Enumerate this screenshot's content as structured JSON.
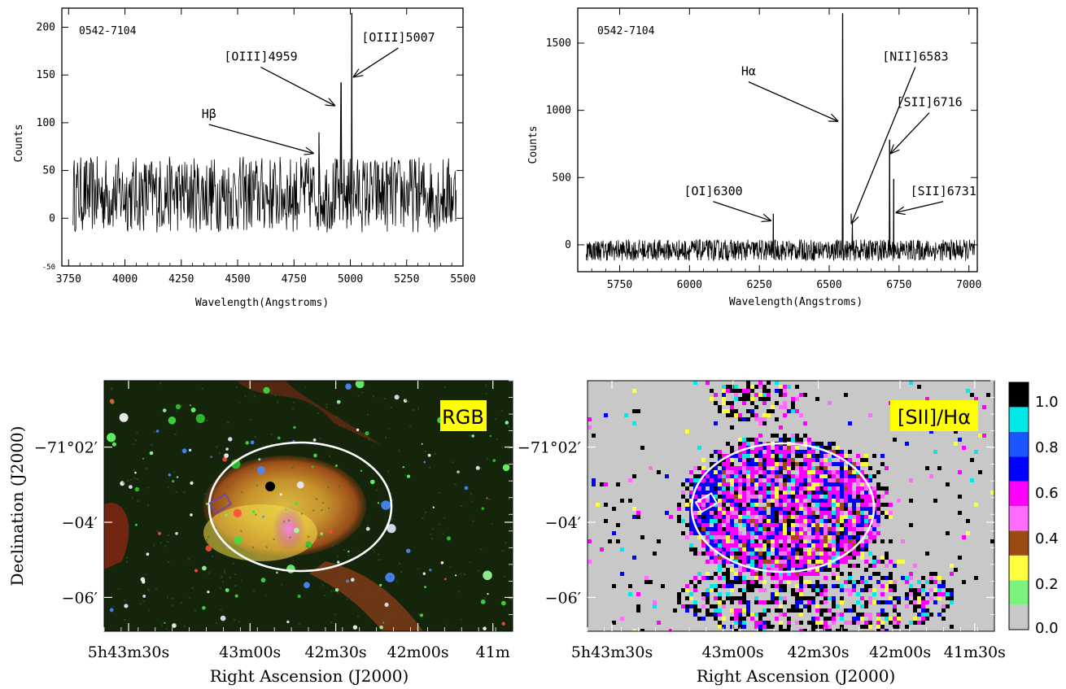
{
  "chart_data": [
    {
      "type": "line",
      "panel": "top-left",
      "object_label": "0542-7104",
      "xlabel": "Wavelength(Angstroms)",
      "ylabel": "Counts",
      "xlim": [
        3720,
        5500
      ],
      "ylim": [
        -50,
        220
      ],
      "xticks": [
        3750,
        4000,
        4250,
        4500,
        4750,
        5000,
        5250,
        5500
      ],
      "yticks": [
        -50,
        0,
        50,
        100,
        150,
        200
      ],
      "noise": {
        "mean": 25,
        "amplitude": 40,
        "x_start": 3770,
        "x_end": 5470
      },
      "lines": [
        {
          "x": 4861,
          "y": 90
        },
        {
          "x": 4959,
          "y": 142
        },
        {
          "x": 5007,
          "y": 215
        }
      ],
      "annotations": [
        {
          "text": "Hβ",
          "text_x": 4340,
          "text_y": 105,
          "arrow_to_x": 4835,
          "arrow_to_y": 68
        },
        {
          "text": "[OIII]4959",
          "text_x": 4440,
          "text_y": 165,
          "arrow_to_x": 4930,
          "arrow_to_y": 118
        },
        {
          "text": "[OIII]5007",
          "text_x": 5050,
          "text_y": 185,
          "arrow_to_x": 5015,
          "arrow_to_y": 148
        }
      ]
    },
    {
      "type": "line",
      "panel": "top-right",
      "object_label": "0542-7104",
      "xlabel": "Wavelength(Angstroms)",
      "ylabel": "Counts",
      "xlim": [
        5600,
        7030
      ],
      "ylim": [
        -200,
        1760
      ],
      "xticks": [
        5750,
        6000,
        6250,
        6500,
        6750,
        7000
      ],
      "yticks": [
        0,
        500,
        1000,
        1500
      ],
      "noise": {
        "mean": -40,
        "amplitude": 80,
        "x_start": 5630,
        "x_end": 7020
      },
      "lines": [
        {
          "x": 6300,
          "y": 230
        },
        {
          "x": 6548,
          "y": 1720
        },
        {
          "x": 6583,
          "y": 160
        },
        {
          "x": 6716,
          "y": 780
        },
        {
          "x": 6731,
          "y": 490
        }
      ],
      "annotations": [
        {
          "text": "Hα",
          "text_x": 6185,
          "text_y": 1260,
          "arrow_to_x": 6530,
          "arrow_to_y": 920
        },
        {
          "text": "[NII]6583",
          "text_x": 6690,
          "text_y": 1370,
          "arrow_to_x": 6580,
          "arrow_to_y": 160
        },
        {
          "text": "[SII]6716",
          "text_x": 6740,
          "text_y": 1030,
          "arrow_to_x": 6720,
          "arrow_to_y": 680
        },
        {
          "text": "[OI]6300",
          "text_x": 5980,
          "text_y": 370,
          "arrow_to_x": 6290,
          "arrow_to_y": 180
        },
        {
          "text": "[SII]6731",
          "text_x": 6790,
          "text_y": 370,
          "arrow_to_x": 6740,
          "arrow_to_y": 240
        }
      ]
    },
    {
      "type": "heatmap",
      "panel": "bottom-left",
      "image_label": "RGB",
      "xlabel": "Right Ascension (J2000)",
      "ylabel": "Declination (J2000)",
      "xtick_labels": [
        "5h43m30s",
        "43m00s",
        "42m30s",
        "42m00s",
        "41m"
      ],
      "ytick_labels": [
        "−71°02′",
        "−04′",
        "−06′"
      ]
    },
    {
      "type": "heatmap",
      "panel": "bottom-right",
      "image_label": "[SII]/Hα",
      "xlabel": "Right Ascension (J2000)",
      "xtick_labels": [
        "5h43m30s",
        "43m00s",
        "42m30s",
        "42m00s",
        "41m30s"
      ],
      "ytick_labels": [
        "−71°02′",
        "−04′",
        "−06′"
      ],
      "colorbar": {
        "ticks": [
          "1.0",
          "0.8",
          "0.6",
          "0.4",
          "0.2",
          "0.0"
        ],
        "colors": [
          "#c8c8c8",
          "#7cf27c",
          "#ffff40",
          "#9b4a12",
          "#ff6cff",
          "#ff00ff",
          "#0000ff",
          "#1a55ff",
          "#00e8e8",
          "#000000"
        ]
      }
    }
  ],
  "colors": {
    "spectrum": "#000000",
    "ellipse": "#ffffff",
    "label_bg": "#ffff00"
  }
}
